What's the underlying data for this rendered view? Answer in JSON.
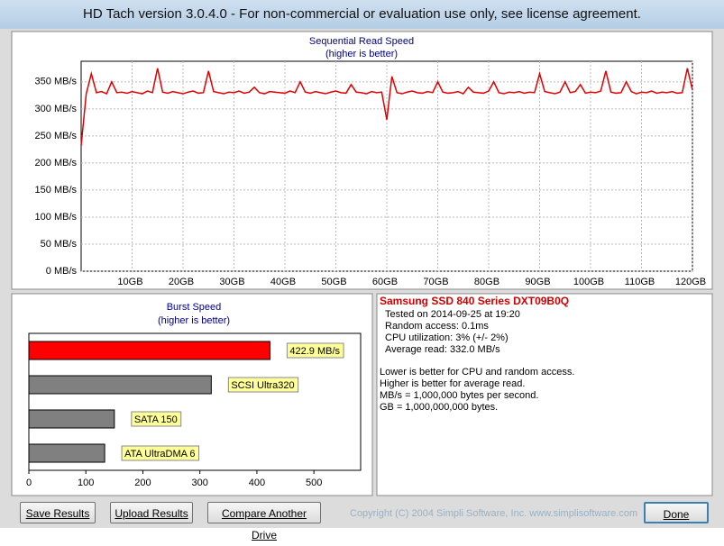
{
  "window_title": "HD Tach version 3.0.4.0  - For non-commercial or evaluation use only, see license agreement.",
  "chart_data": [
    {
      "type": "line",
      "title": "Sequential Read Speed",
      "subtitle": "(higher is better)",
      "x": [
        0,
        1,
        2,
        3,
        4,
        5,
        6,
        7,
        8,
        9,
        10,
        11,
        12,
        13,
        14,
        15,
        16,
        17,
        18,
        19,
        20,
        21,
        22,
        23,
        24,
        25,
        26,
        27,
        28,
        29,
        30,
        31,
        32,
        33,
        34,
        35,
        36,
        37,
        38,
        39,
        40,
        41,
        42,
        43,
        44,
        45,
        46,
        47,
        48,
        49,
        50,
        51,
        52,
        53,
        54,
        55,
        56,
        57,
        58,
        59,
        60,
        61,
        62,
        63,
        64,
        65,
        66,
        67,
        68,
        69,
        70,
        71,
        72,
        73,
        74,
        75,
        76,
        77,
        78,
        79,
        80,
        81,
        82,
        83,
        84,
        85,
        86,
        87,
        88,
        89,
        90,
        91,
        92,
        93,
        94,
        95,
        96,
        97,
        98,
        99,
        100,
        101,
        102,
        103,
        104,
        105,
        106,
        107,
        108,
        109,
        110,
        111,
        112,
        113,
        114,
        115,
        116,
        117,
        118,
        119,
        120
      ],
      "series": [
        {
          "color": "#e00000",
          "values": [
            232,
            328,
            365,
            330,
            332,
            328,
            350,
            330,
            331,
            329,
            332,
            330,
            328,
            333,
            330,
            375,
            331,
            329,
            332,
            330,
            328,
            331,
            333,
            329,
            330,
            370,
            332,
            330,
            328,
            331,
            330,
            333,
            329,
            331,
            340,
            330,
            328,
            332,
            331,
            330,
            329,
            333,
            330,
            350,
            331,
            329,
            332,
            330,
            328,
            331,
            333,
            330,
            329,
            345,
            331,
            330,
            328,
            332,
            330,
            331,
            280,
            360,
            330,
            328,
            331,
            333,
            330,
            329,
            332,
            330,
            350,
            331,
            329,
            330,
            332,
            328,
            340,
            331,
            330,
            329,
            333,
            350,
            330,
            328,
            331,
            330,
            332,
            329,
            331,
            330,
            365,
            332,
            330,
            328,
            331,
            350,
            330,
            332,
            345,
            329,
            331,
            330,
            333,
            370,
            331,
            329,
            330,
            350,
            332,
            328,
            331,
            330,
            333,
            329,
            331,
            330,
            332,
            329,
            330,
            375,
            335
          ]
        }
      ],
      "xlim": [
        0,
        120
      ],
      "ylim": [
        0,
        388
      ],
      "xticks": [
        {
          "value": 10,
          "label": "10GB"
        },
        {
          "value": 20,
          "label": "20GB"
        },
        {
          "value": 30,
          "label": "30GB"
        },
        {
          "value": 40,
          "label": "40GB"
        },
        {
          "value": 50,
          "label": "50GB"
        },
        {
          "value": 60,
          "label": "60GB"
        },
        {
          "value": 70,
          "label": "70GB"
        },
        {
          "value": 80,
          "label": "80GB"
        },
        {
          "value": 90,
          "label": "90GB"
        },
        {
          "value": 100,
          "label": "100GB"
        },
        {
          "value": 110,
          "label": "110GB"
        },
        {
          "value": 120,
          "label": "120GB"
        }
      ],
      "yticks": [
        {
          "value": 0,
          "label": "0 MB/s"
        },
        {
          "value": 50,
          "label": "50 MB/s"
        },
        {
          "value": 100,
          "label": "100 MB/s"
        },
        {
          "value": 150,
          "label": "150 MB/s"
        },
        {
          "value": 200,
          "label": "200 MB/s"
        },
        {
          "value": 250,
          "label": "250 MB/s"
        },
        {
          "value": 300,
          "label": "300 MB/s"
        },
        {
          "value": 350,
          "label": "350 MB/s"
        }
      ],
      "grid": true
    },
    {
      "type": "hbar",
      "title": "Burst Speed",
      "subtitle": "(higher is better)",
      "categories": [
        null,
        "SCSI Ultra320",
        "SATA 150",
        "ATA UltraDMA 6"
      ],
      "values": [
        422.9,
        320,
        150,
        133
      ],
      "value_labels": [
        "422.9 MB/s",
        null,
        null,
        null
      ],
      "colors": [
        "#ff0000",
        "#808080",
        "#808080",
        "#808080"
      ],
      "xlim": [
        0,
        582
      ],
      "xticks": [
        0,
        100,
        200,
        300,
        400,
        500
      ],
      "grid": true
    }
  ],
  "info": {
    "drive": "Samsung SSD 840 Series DXT09B0Q",
    "details": [
      "Tested on 2014-09-25 at 19:20",
      "Random access: 0.1ms",
      "CPU utilization: 3% (+/- 2%)",
      "Average read: 332.0 MB/s"
    ],
    "notes": [
      "Lower is better for CPU and random access.",
      "Higher is better for average read.",
      "MB/s = 1,000,000 bytes per second.",
      "GB = 1,000,000,000 bytes."
    ]
  },
  "buttons": [
    "Save Results",
    "Upload Results",
    "Compare Another Drive",
    "Done"
  ],
  "copyright": "Copyright (C) 2004 Simpli Software, Inc. www.simplisoftware.com"
}
